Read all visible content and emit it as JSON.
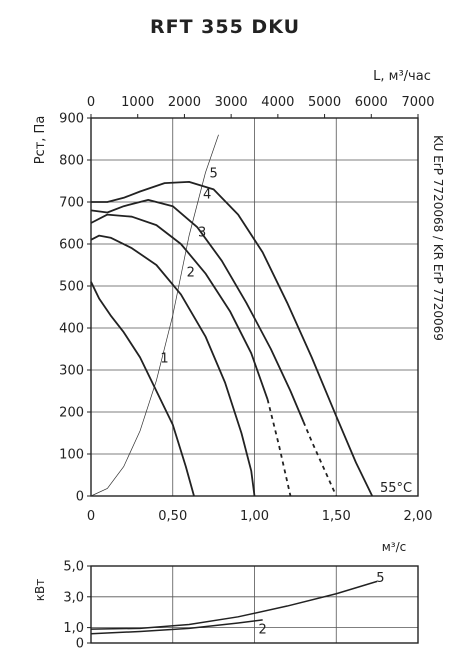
{
  "chart_data": [
    {
      "type": "line",
      "title": "RFT 355 DKU",
      "ylabel": "Рст, Па",
      "xlabel": "м³/с",
      "x2label": "L, м³/час",
      "side_label": "KU ErP 7720068 / KR ErP 7720069",
      "temperature_label": "55°C",
      "xlim": [
        0,
        2.0
      ],
      "ylim": [
        0,
        900
      ],
      "x2lim": [
        0,
        7000
      ],
      "grid": true,
      "x_ticks": [
        0,
        0.5,
        1.0,
        1.5,
        2.0
      ],
      "x_tick_labels": [
        "0",
        "0,50",
        "1,00",
        "1,50",
        "2,00"
      ],
      "y_ticks": [
        0,
        100,
        200,
        300,
        400,
        500,
        600,
        700,
        800,
        900
      ],
      "y_tick_labels": [
        "0",
        "100",
        "200",
        "300",
        "400",
        "500",
        "600",
        "700",
        "800",
        "900"
      ],
      "x2_ticks": [
        0,
        1000,
        2000,
        3000,
        4000,
        5000,
        6000,
        7000
      ],
      "x2_tick_labels": [
        "0",
        "1000",
        "2000",
        "3000",
        "4000",
        "5000",
        "6000",
        "7000"
      ],
      "series": [
        {
          "name": "1",
          "label_at": [
            0.45,
            330
          ],
          "points": [
            [
              0,
              510
            ],
            [
              0.05,
              470
            ],
            [
              0.12,
              430
            ],
            [
              0.2,
              390
            ],
            [
              0.3,
              330
            ],
            [
              0.4,
              250
            ],
            [
              0.5,
              170
            ],
            [
              0.58,
              70
            ],
            [
              0.63,
              0
            ]
          ]
        },
        {
          "name": "2",
          "label_at": [
            0.61,
            535
          ],
          "points": [
            [
              0,
              610
            ],
            [
              0.05,
              620
            ],
            [
              0.12,
              615
            ],
            [
              0.25,
              590
            ],
            [
              0.4,
              550
            ],
            [
              0.55,
              480
            ],
            [
              0.7,
              380
            ],
            [
              0.82,
              270
            ],
            [
              0.92,
              150
            ],
            [
              0.98,
              60
            ],
            [
              1.0,
              0
            ]
          ],
          "dashed_from": 1.0
        },
        {
          "name": "3",
          "label_at": [
            0.68,
            630
          ],
          "points": [
            [
              0,
              650
            ],
            [
              0.1,
              670
            ],
            [
              0.25,
              665
            ],
            [
              0.4,
              645
            ],
            [
              0.55,
              600
            ],
            [
              0.7,
              530
            ],
            [
              0.85,
              440
            ],
            [
              0.98,
              340
            ],
            [
              1.08,
              230
            ],
            [
              1.15,
              120
            ],
            [
              1.22,
              0
            ]
          ],
          "dashed_from": 1.08
        },
        {
          "name": "4",
          "label_at": [
            0.71,
            720
          ],
          "points": [
            [
              0,
              680
            ],
            [
              0.1,
              675
            ],
            [
              0.2,
              690
            ],
            [
              0.35,
              705
            ],
            [
              0.5,
              690
            ],
            [
              0.65,
              640
            ],
            [
              0.8,
              560
            ],
            [
              0.95,
              460
            ],
            [
              1.1,
              350
            ],
            [
              1.22,
              250
            ],
            [
              1.35,
              130
            ],
            [
              1.5,
              0
            ]
          ],
          "dashed_from": 1.3
        },
        {
          "name": "5",
          "label_at": [
            0.75,
            770
          ],
          "points": [
            [
              0,
              700
            ],
            [
              0.1,
              700
            ],
            [
              0.2,
              710
            ],
            [
              0.3,
              725
            ],
            [
              0.45,
              745
            ],
            [
              0.6,
              748
            ],
            [
              0.75,
              730
            ],
            [
              0.9,
              670
            ],
            [
              1.05,
              580
            ],
            [
              1.2,
              460
            ],
            [
              1.35,
              330
            ],
            [
              1.5,
              190
            ],
            [
              1.62,
              80
            ],
            [
              1.72,
              0
            ]
          ]
        }
      ],
      "system_curve": {
        "points": [
          [
            0,
            0
          ],
          [
            0.1,
            18
          ],
          [
            0.2,
            70
          ],
          [
            0.3,
            155
          ],
          [
            0.4,
            275
          ],
          [
            0.5,
            430
          ],
          [
            0.6,
            620
          ],
          [
            0.7,
            770
          ],
          [
            0.78,
            860
          ]
        ]
      }
    },
    {
      "type": "line",
      "ylabel": "кВт",
      "xlim": [
        0,
        2.0
      ],
      "ylim": [
        0,
        5.0
      ],
      "grid": true,
      "y_ticks": [
        0,
        1,
        3,
        5
      ],
      "y_tick_labels": [
        "0",
        "1,0",
        "3,0",
        "5,0"
      ],
      "series": [
        {
          "name": "2",
          "label_at": [
            1.05,
            0.95
          ],
          "points": [
            [
              0,
              0.6
            ],
            [
              0.3,
              0.75
            ],
            [
              0.6,
              0.95
            ],
            [
              0.9,
              1.3
            ],
            [
              1.05,
              1.5
            ]
          ]
        },
        {
          "name": "5",
          "label_at": [
            1.77,
            4.3
          ],
          "points": [
            [
              0,
              0.9
            ],
            [
              0.3,
              0.95
            ],
            [
              0.6,
              1.2
            ],
            [
              0.9,
              1.7
            ],
            [
              1.2,
              2.4
            ],
            [
              1.5,
              3.2
            ],
            [
              1.75,
              4.0
            ]
          ]
        }
      ]
    }
  ]
}
